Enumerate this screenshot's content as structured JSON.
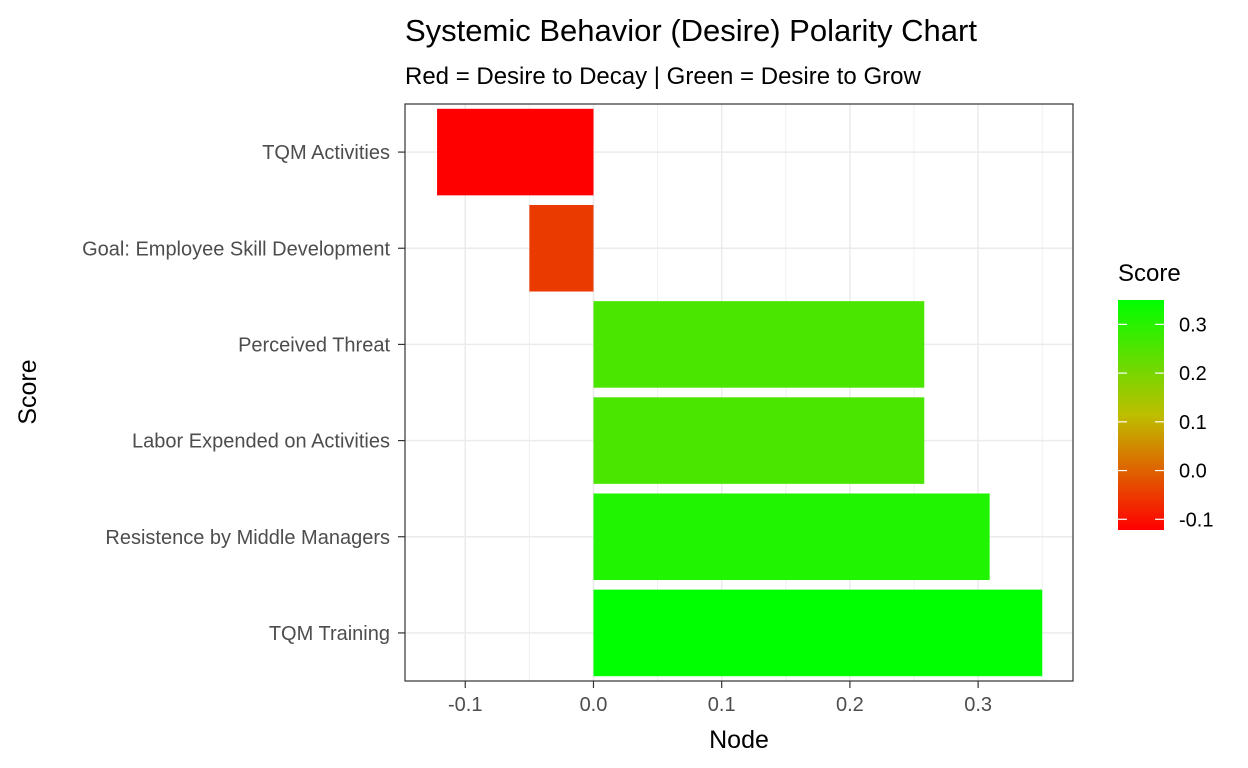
{
  "chart_data": {
    "type": "bar",
    "orientation": "horizontal",
    "title": "Systemic Behavior (Desire) Polarity Chart",
    "subtitle": "Red = Desire to Decay | Green = Desire to Grow",
    "xlabel": "Node",
    "ylabel": "Score",
    "categories": [
      "TQM Activities",
      "Goal: Employee Skill Development",
      "Perceived Threat",
      "Labor Expended on Activities",
      "Resistence by Middle Managers",
      "TQM Training"
    ],
    "values": [
      -0.122,
      -0.05,
      0.258,
      0.258,
      0.309,
      0.35
    ],
    "xlim": [
      -0.147,
      0.374
    ],
    "xticks": [
      -0.1,
      0.0,
      0.1,
      0.2,
      0.3
    ],
    "xtick_labels": [
      "-0.1",
      "0.0",
      "0.1",
      "0.2",
      "0.3"
    ],
    "grid": true,
    "legend": {
      "title": "Score",
      "placement": "right",
      "type": "colorbar",
      "range": [
        -0.122,
        0.35
      ],
      "ticks": [
        -0.1,
        0.0,
        0.1,
        0.2,
        0.3
      ],
      "tick_labels": [
        "-0.1",
        "0.0",
        "0.1",
        "0.2",
        "0.3"
      ],
      "low_color": "#ff0000",
      "high_color": "#00ff00"
    }
  }
}
